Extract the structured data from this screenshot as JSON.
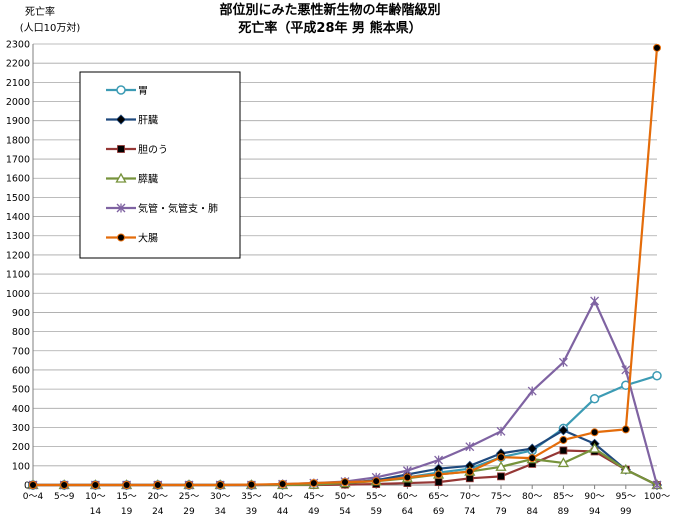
{
  "chart_data": {
    "type": "line",
    "title": "部位別にみた悪性新生物の年齢階級別",
    "subtitle": "死亡率（平成28年 男 熊本県）",
    "ylabel": [
      "死亡率",
      "(人口10万対)"
    ],
    "ylim": [
      0,
      2300
    ],
    "ytick_step": 100,
    "grid": "horizontal",
    "legend_position": "upper-left, inside plot",
    "categories": [
      [
        "0～4",
        ""
      ],
      [
        "5～9",
        ""
      ],
      [
        "10～",
        "14"
      ],
      [
        "15～",
        "19"
      ],
      [
        "20～",
        "24"
      ],
      [
        "25～",
        "29"
      ],
      [
        "30～",
        "34"
      ],
      [
        "35～",
        "39"
      ],
      [
        "40～",
        "44"
      ],
      [
        "45～",
        "49"
      ],
      [
        "50～",
        "54"
      ],
      [
        "55～",
        "59"
      ],
      [
        "60～",
        "64"
      ],
      [
        "65～",
        "69"
      ],
      [
        "70～",
        "74"
      ],
      [
        "75～",
        "79"
      ],
      [
        "80～",
        "84"
      ],
      [
        "85～",
        "89"
      ],
      [
        "90～",
        "94"
      ],
      [
        "95～",
        "99"
      ],
      [
        "100～",
        ""
      ]
    ],
    "series": [
      {
        "name": "胃",
        "color": "#3c9bb4",
        "marker": "circle-open",
        "values": [
          0,
          0,
          0,
          0,
          0,
          0,
          0,
          0,
          2,
          5,
          12,
          25,
          40,
          65,
          85,
          145,
          180,
          295,
          450,
          520,
          570
        ]
      },
      {
        "name": "肝臓",
        "color": "#1f497d",
        "marker": "diamond",
        "values": [
          0,
          0,
          0,
          0,
          0,
          0,
          0,
          0,
          1,
          3,
          10,
          25,
          55,
          85,
          100,
          165,
          190,
          285,
          215,
          80,
          0
        ]
      },
      {
        "name": "胆のう",
        "color": "#953735",
        "marker": "square",
        "values": [
          0,
          0,
          0,
          0,
          0,
          0,
          0,
          0,
          0,
          0,
          2,
          5,
          10,
          15,
          35,
          45,
          110,
          180,
          175,
          80,
          0
        ]
      },
      {
        "name": "膵臓",
        "color": "#77933c",
        "marker": "triangle-open",
        "values": [
          0,
          0,
          0,
          0,
          0,
          0,
          0,
          0,
          0,
          2,
          10,
          20,
          35,
          55,
          70,
          95,
          135,
          115,
          190,
          80,
          0
        ]
      },
      {
        "name": "気管・気管支・肺",
        "color": "#7f63a2",
        "marker": "asterisk",
        "values": [
          0,
          0,
          0,
          0,
          0,
          0,
          0,
          0,
          5,
          10,
          18,
          40,
          75,
          130,
          200,
          280,
          490,
          640,
          960,
          600,
          0
        ]
      },
      {
        "name": "大腸",
        "color": "#e46c0a",
        "marker": "circle-filled",
        "values": [
          0,
          0,
          0,
          0,
          0,
          0,
          0,
          2,
          5,
          10,
          15,
          20,
          40,
          55,
          70,
          145,
          140,
          235,
          275,
          290,
          2280
        ]
      }
    ]
  }
}
